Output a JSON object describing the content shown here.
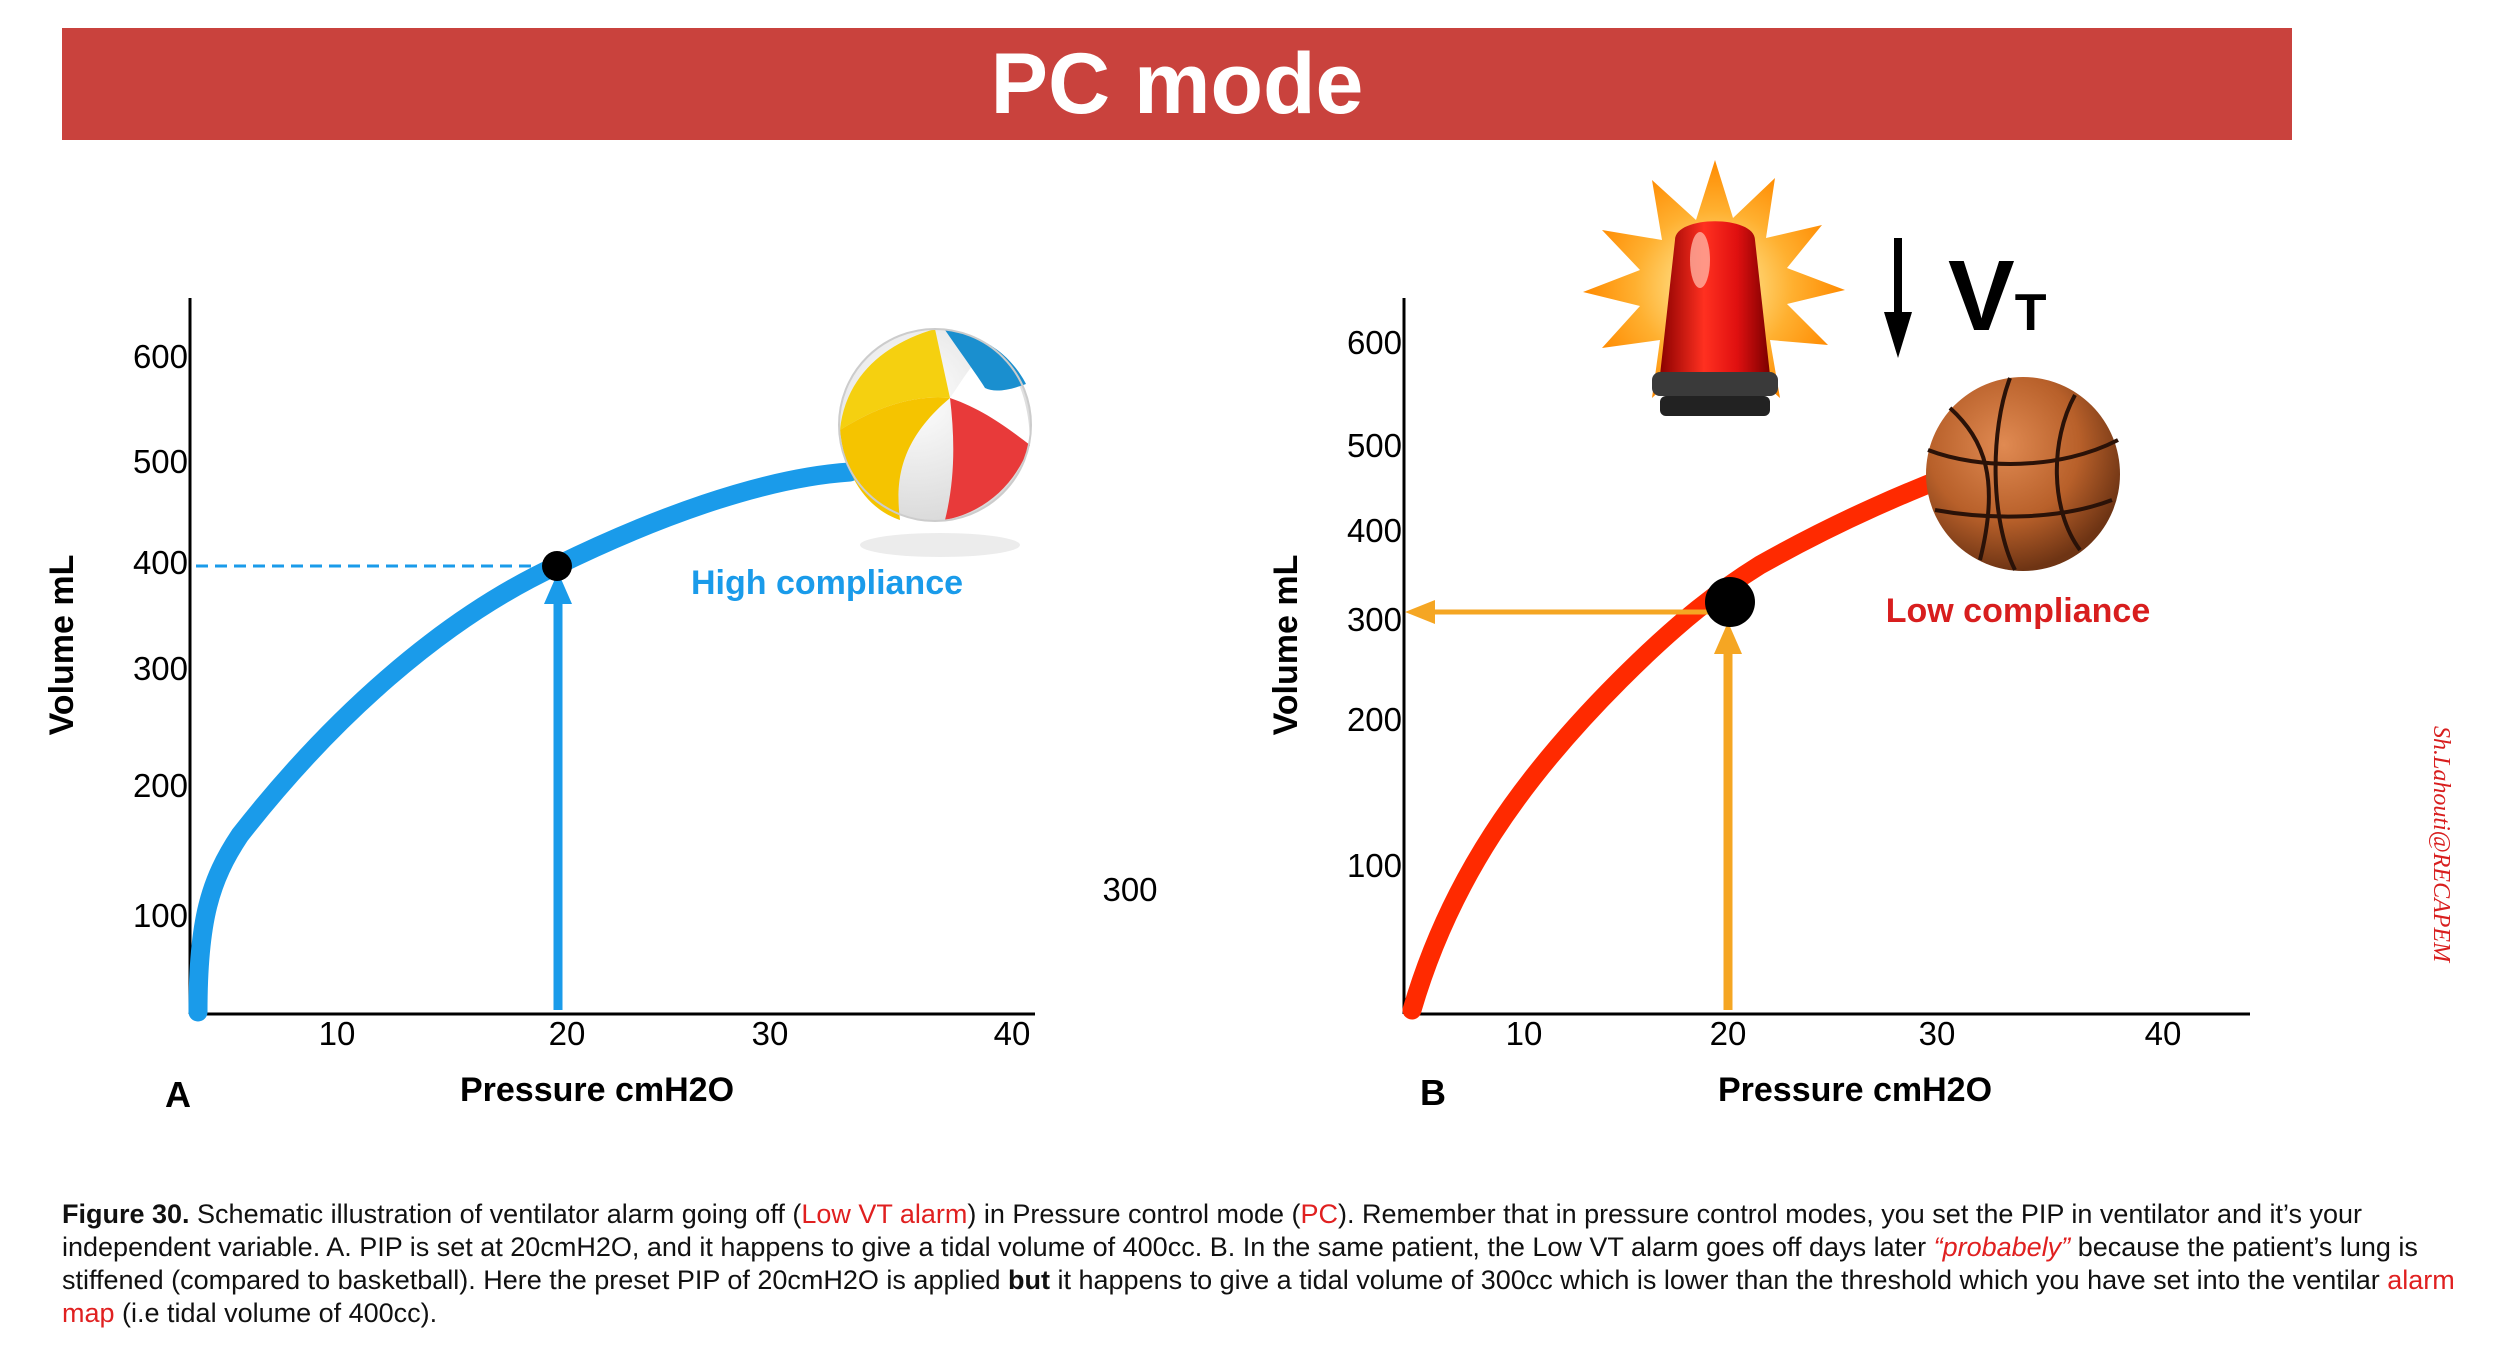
{
  "banner": {
    "title": "PC mode"
  },
  "panel_a": {
    "letter": "A",
    "xlabel": "Pressure cmH2O",
    "ylabel": "Volume mL",
    "y_ticks": [
      "600",
      "500",
      "400",
      "300",
      "200",
      "100"
    ],
    "x_ticks": [
      "10",
      "20",
      "30",
      "40"
    ],
    "annotation": "High compliance",
    "stray_label": "300",
    "curve_color": "#1a9bea",
    "ball": "beach-ball"
  },
  "panel_b": {
    "letter": "B",
    "xlabel": "Pressure cmH2O",
    "ylabel": "Volume mL",
    "y_ticks": [
      "600",
      "500",
      "400",
      "300",
      "200",
      "100"
    ],
    "x_ticks": [
      "10",
      "20",
      "30",
      "40"
    ],
    "annotation": "Low compliance",
    "alarm_label_main": "V",
    "alarm_label_sub": "T",
    "curve_color": "#ff2a00",
    "arrow_color": "#f5a623",
    "ball": "basketball"
  },
  "caption": {
    "lead": "Figure 30.",
    "p1": " Schematic illustration of ventilator alarm going off (",
    "low_vt_alarm": "Low VT alarm",
    "p2": ") in Pressure control mode (",
    "pc": "PC",
    "p3": "). Remember that in pressure control modes, you set the PIP in ventilator and it’s your independent variable. A. PIP is set at 20cmH2O, and it happens to give a tidal volume of 400cc. B. In the same patient, the Low VT alarm goes off days later ",
    "probably": "“probabely”",
    "p4": " because the patient’s lung is stiffened (compared to basketball). Here the preset PIP of 20cmH2O is applied ",
    "but": "but",
    "p5": " it happens to give a tidal volume of 300cc which is lower than the threshold which you have set into the ventilar ",
    "alarm_map": "alarm map",
    "p6": " (i.e tidal volume of 400cc)."
  },
  "watermark": "Sh.Lahouti@RECAPEM"
}
